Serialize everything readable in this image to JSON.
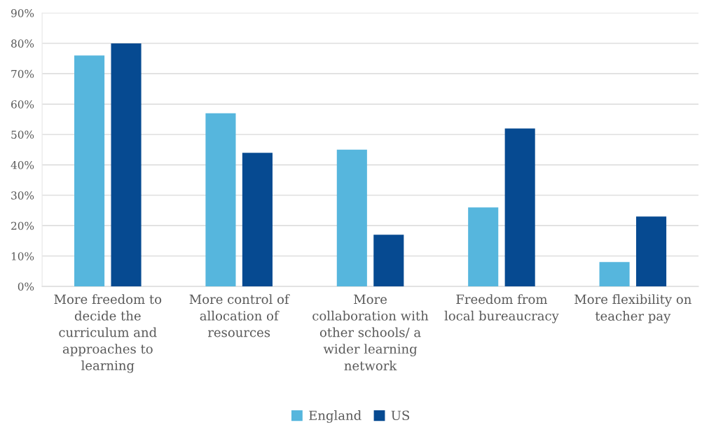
{
  "chart_data": {
    "type": "bar",
    "categories": [
      "More freedom to\ndecide the\ncurriculum and\napproaches to\nlearning",
      "More control of\nallocation of\nresources",
      "More\ncollaboration with\nother schools/ a\nwider learning\nnetwork",
      "Freedom from\nlocal bureaucracy",
      "More flexibility on\nteacher pay"
    ],
    "series": [
      {
        "name": "England",
        "color": "#56b6dd",
        "values": [
          76,
          57,
          45,
          26,
          8
        ]
      },
      {
        "name": "US",
        "color": "#064a91",
        "values": [
          80,
          44,
          17,
          52,
          23
        ]
      }
    ],
    "ylim": [
      0,
      90
    ],
    "yticks": [
      {
        "value": 0,
        "label": "0%"
      },
      {
        "value": 10,
        "label": "10%"
      },
      {
        "value": 20,
        "label": "20%"
      },
      {
        "value": 30,
        "label": "30%"
      },
      {
        "value": 40,
        "label": "40%"
      },
      {
        "value": 50,
        "label": "50%"
      },
      {
        "value": 60,
        "label": "60%"
      },
      {
        "value": 70,
        "label": "70%"
      },
      {
        "value": 80,
        "label": "80%"
      },
      {
        "value": 90,
        "label": "90%"
      }
    ],
    "grid": "y",
    "legend": "bottom"
  }
}
